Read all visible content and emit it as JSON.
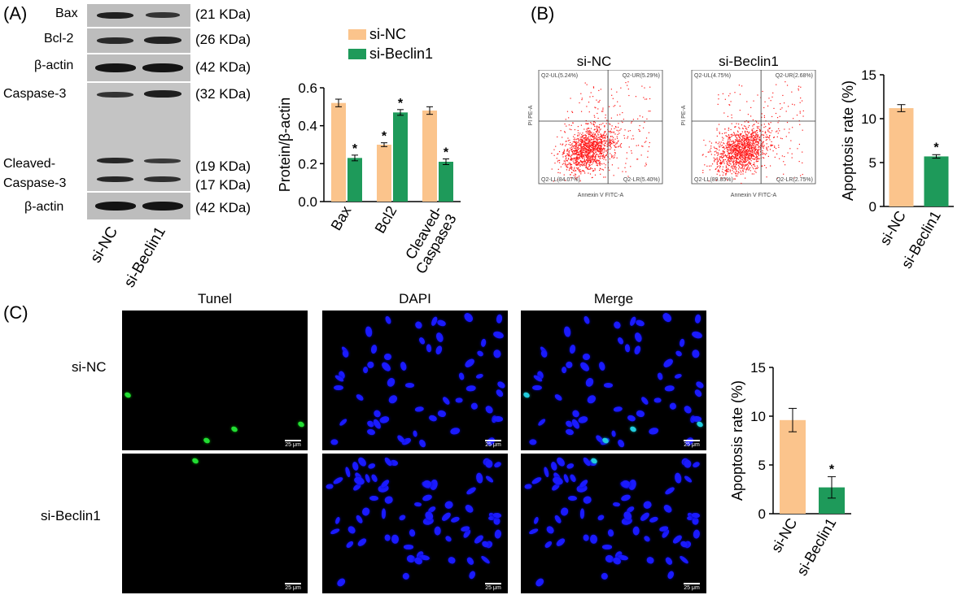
{
  "panels": {
    "A": "(A)",
    "B": "(B)",
    "C": "(C)"
  },
  "western_blot": {
    "rows": [
      {
        "name": "Bax",
        "kda": "(21 KDa)"
      },
      {
        "name": "Bcl-2",
        "kda": "(26 KDa)"
      },
      {
        "name": "β-actin",
        "kda": "(42 KDa)"
      },
      {
        "name": "Caspase-3",
        "kda": "(32 KDa)"
      },
      {
        "name": "Cleaved-",
        "kda": "(19 KDa)"
      },
      {
        "name": "Caspase-3",
        "kda": "(17 KDa)"
      },
      {
        "name": "β-actin",
        "kda": "(42 KDa)"
      }
    ],
    "lanes": [
      "si-NC",
      "si-Beclin1"
    ]
  },
  "flow_cytometry": {
    "plots": [
      {
        "title": "si-NC",
        "ul": "Q2-UL(5.24%)",
        "ur": "Q2-UR(5.29%)",
        "ll": "Q2-LL(84.07%)",
        "lr": "Q2-LR(5.40%)"
      },
      {
        "title": "si-Beclin1",
        "ul": "Q2-UL(4.75%)",
        "ur": "Q2-UR(2.68%)",
        "ll": "Q2-LL(89.85%)",
        "lr": "Q2-LR(2.75%)"
      }
    ],
    "xlabel": "Annexin V FITC-A",
    "ylabel": "PI PE-A"
  },
  "tunel": {
    "columns": [
      "Tunel",
      "DAPI",
      "Merge"
    ],
    "rows": [
      "si-NC",
      "si-Beclin1"
    ],
    "scale_bar": "25 μm"
  },
  "colors": {
    "si_nc": "#FBC48C",
    "si_beclin1": "#1E9A5A",
    "dapi": "#1a1aff",
    "tunel": "#22dd33"
  },
  "chart_data": [
    {
      "type": "bar",
      "categories": [
        "Bax",
        "Bcl2",
        "Cleaved-Caspase3"
      ],
      "category_lines": [
        [
          "Bax"
        ],
        [
          "Bcl2"
        ],
        [
          "Cleaved-",
          "Caspase3"
        ]
      ],
      "series": [
        {
          "name": "si-NC",
          "values": [
            0.52,
            0.3,
            0.48
          ],
          "errors": [
            0.02,
            0.01,
            0.02
          ]
        },
        {
          "name": "si-Beclin1",
          "values": [
            0.23,
            0.47,
            0.21
          ],
          "errors": [
            0.015,
            0.015,
            0.015
          ]
        }
      ],
      "significance": [
        "",
        "*",
        "*",
        "*",
        "",
        "*"
      ],
      "ylabel": "Protein/β-actin",
      "ylim": [
        0,
        0.6
      ],
      "yticks": [
        "0.0",
        "0.2",
        "0.4",
        "0.6"
      ],
      "legend": "top"
    },
    {
      "type": "bar",
      "categories": [
        "si-NC",
        "si-Beclin1"
      ],
      "values": [
        11.2,
        5.7
      ],
      "errors": [
        0.4,
        0.2
      ],
      "significance": [
        "",
        "*"
      ],
      "ylabel": "Apoptosis rate (%)",
      "ylim": [
        0,
        15
      ],
      "yticks": [
        "0",
        "5",
        "10",
        "15"
      ]
    },
    {
      "type": "bar",
      "categories": [
        "si-NC",
        "si-Beclin1"
      ],
      "values": [
        9.6,
        2.7
      ],
      "errors": [
        1.2,
        1.1
      ],
      "significance": [
        "",
        "*"
      ],
      "ylabel": "Apoptosis rate (%)",
      "ylim": [
        0,
        15
      ],
      "yticks": [
        "0",
        "5",
        "10",
        "15"
      ]
    }
  ]
}
